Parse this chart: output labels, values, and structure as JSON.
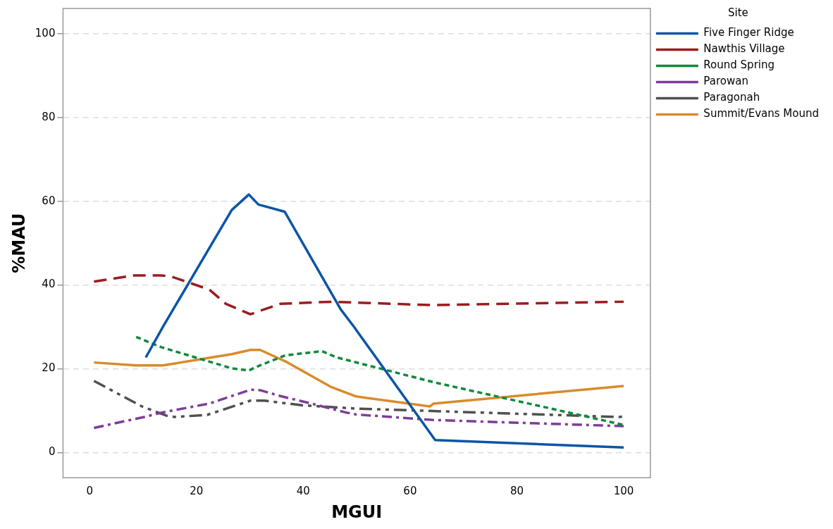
{
  "chart_data": {
    "type": "line",
    "xlabel": "MGUI",
    "ylabel": "%MAU",
    "legend_title": "Site",
    "legend": "top right",
    "grid": "y",
    "marker": "none",
    "xlim": [
      -5,
      105
    ],
    "xticks": [
      0,
      20,
      40,
      60,
      80,
      100
    ],
    "ylim": [
      -6,
      106
    ],
    "yticks": [
      0,
      20,
      40,
      60,
      80,
      100
    ],
    "series": [
      {
        "name": "Five Finger Ridge",
        "color": "#0b55a6",
        "line_style": "solid",
        "x": [
          10.5,
          13.7,
          26.6,
          29.8,
          31.6,
          36.5,
          47,
          49.5,
          64.7,
          100
        ],
        "values": [
          22.7,
          30,
          57.9,
          61.6,
          59.2,
          57.5,
          34.2,
          30,
          3,
          1.2
        ]
      },
      {
        "name": "Nawthis Village",
        "color": "#9c1c1f",
        "line_style": "dashed",
        "x": [
          0.8,
          8.4,
          13.2,
          15.1,
          22.4,
          25.5,
          30.1,
          31.6,
          35.7,
          45.3,
          64,
          100
        ],
        "values": [
          40.8,
          42.3,
          42.3,
          42.1,
          38.9,
          35.5,
          33,
          33.7,
          35.5,
          36,
          35.2,
          36
        ]
      },
      {
        "name": "Round Spring",
        "color": "#0f8a3c",
        "line_style": "dotted",
        "x": [
          8.7,
          13.3,
          26.6,
          29.8,
          31.3,
          36.6,
          43.5,
          46.3,
          64.4,
          100
        ],
        "values": [
          27.6,
          25.2,
          20.1,
          19.6,
          20.5,
          23.2,
          24.2,
          22.7,
          16.8,
          6.6
        ]
      },
      {
        "name": "Parowan",
        "color": "#7e3d98",
        "line_style": "dashdot",
        "x": [
          0.8,
          10.2,
          13.7,
          22.4,
          30.1,
          31.9,
          35.7,
          41.2,
          47.9,
          49.9,
          64,
          100
        ],
        "values": [
          5.9,
          8.5,
          9.6,
          11.7,
          15,
          14.9,
          13.5,
          11.8,
          9.6,
          9.1,
          7.8,
          6.3
        ]
      },
      {
        "name": "Paragonah",
        "color": "#505050",
        "line_style": "dashdotdot",
        "x": [
          0.8,
          9.8,
          14.4,
          16,
          22,
          30.1,
          32.7,
          39.7,
          49.9,
          99.1,
          100
        ],
        "values": [
          17.1,
          11,
          8.8,
          8.5,
          9,
          12.4,
          12.4,
          11.3,
          10.5,
          8.5,
          8.6
        ]
      },
      {
        "name": "Summit/Evans Mound",
        "color": "#d88b2a",
        "line_style": "solid",
        "x": [
          0.8,
          8.7,
          13.7,
          26.6,
          30.1,
          31.9,
          36.6,
          45.3,
          49.9,
          63.7,
          64.4,
          100
        ],
        "values": [
          21.5,
          20.8,
          20.8,
          23.5,
          24.5,
          24.5,
          21.8,
          15.6,
          13.4,
          11,
          11.7,
          15.9
        ]
      }
    ]
  }
}
